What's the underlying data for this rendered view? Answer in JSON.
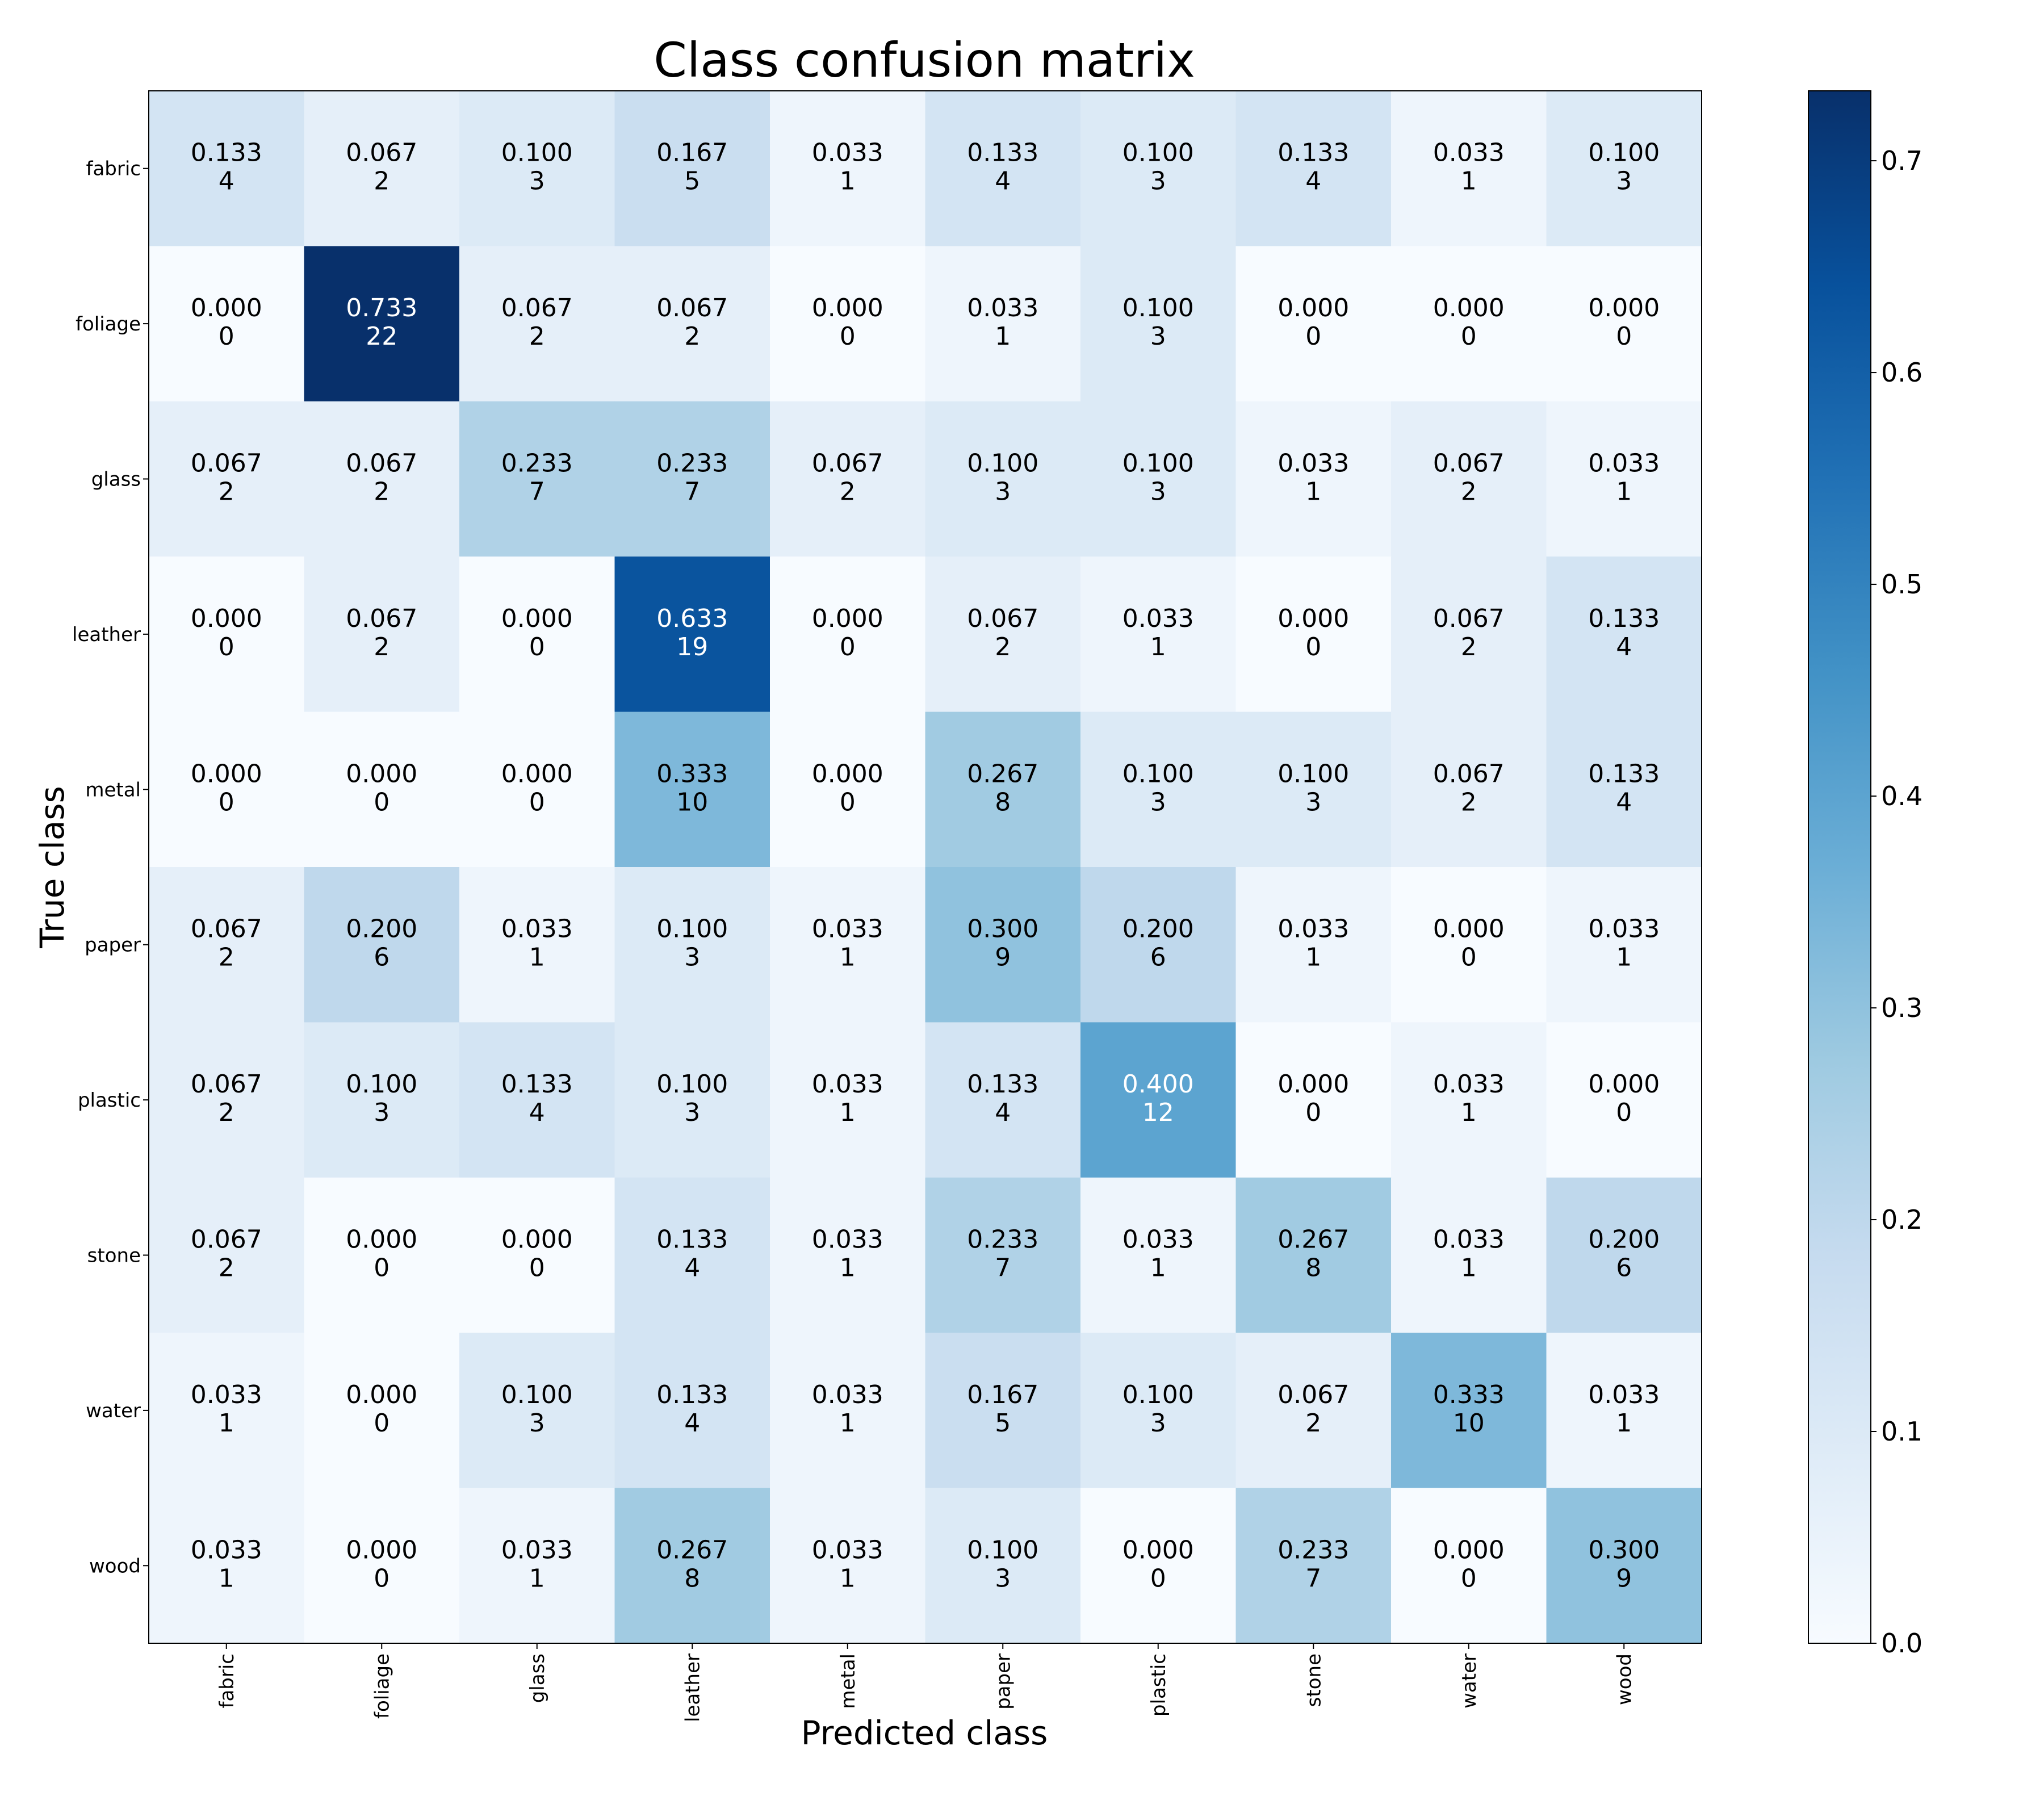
{
  "chart_data": {
    "type": "heatmap",
    "title": "Class confusion matrix",
    "xlabel": "Predicted class",
    "ylabel": "True class",
    "x_categories": [
      "fabric",
      "foliage",
      "glass",
      "leather",
      "metal",
      "paper",
      "plastic",
      "stone",
      "water",
      "wood"
    ],
    "y_categories": [
      "fabric",
      "foliage",
      "glass",
      "leather",
      "metal",
      "paper",
      "plastic",
      "stone",
      "water",
      "wood"
    ],
    "normalized": [
      [
        "0.133",
        "0.067",
        "0.100",
        "0.167",
        "0.033",
        "0.133",
        "0.100",
        "0.133",
        "0.033",
        "0.100"
      ],
      [
        "0.000",
        "0.733",
        "0.067",
        "0.067",
        "0.000",
        "0.033",
        "0.100",
        "0.000",
        "0.000",
        "0.000"
      ],
      [
        "0.067",
        "0.067",
        "0.233",
        "0.233",
        "0.067",
        "0.100",
        "0.100",
        "0.033",
        "0.067",
        "0.033"
      ],
      [
        "0.000",
        "0.067",
        "0.000",
        "0.633",
        "0.000",
        "0.067",
        "0.033",
        "0.000",
        "0.067",
        "0.133"
      ],
      [
        "0.000",
        "0.000",
        "0.000",
        "0.333",
        "0.000",
        "0.267",
        "0.100",
        "0.100",
        "0.067",
        "0.133"
      ],
      [
        "0.067",
        "0.200",
        "0.033",
        "0.100",
        "0.033",
        "0.300",
        "0.200",
        "0.033",
        "0.000",
        "0.033"
      ],
      [
        "0.067",
        "0.100",
        "0.133",
        "0.100",
        "0.033",
        "0.133",
        "0.400",
        "0.000",
        "0.033",
        "0.000"
      ],
      [
        "0.067",
        "0.000",
        "0.000",
        "0.133",
        "0.033",
        "0.233",
        "0.033",
        "0.267",
        "0.033",
        "0.200"
      ],
      [
        "0.033",
        "0.000",
        "0.100",
        "0.133",
        "0.033",
        "0.167",
        "0.100",
        "0.067",
        "0.333",
        "0.033"
      ],
      [
        "0.033",
        "0.000",
        "0.033",
        "0.267",
        "0.033",
        "0.100",
        "0.000",
        "0.233",
        "0.000",
        "0.300"
      ]
    ],
    "counts": [
      [
        "4",
        "2",
        "3",
        "5",
        "1",
        "4",
        "3",
        "4",
        "1",
        "3"
      ],
      [
        "0",
        "22",
        "2",
        "2",
        "0",
        "1",
        "3",
        "0",
        "0",
        "0"
      ],
      [
        "2",
        "2",
        "7",
        "7",
        "2",
        "3",
        "3",
        "1",
        "2",
        "1"
      ],
      [
        "0",
        "2",
        "0",
        "19",
        "0",
        "2",
        "1",
        "0",
        "2",
        "4"
      ],
      [
        "0",
        "0",
        "0",
        "10",
        "0",
        "8",
        "3",
        "3",
        "2",
        "4"
      ],
      [
        "2",
        "6",
        "1",
        "3",
        "1",
        "9",
        "6",
        "1",
        "0",
        "1"
      ],
      [
        "2",
        "3",
        "4",
        "3",
        "1",
        "4",
        "12",
        "0",
        "1",
        "0"
      ],
      [
        "2",
        "0",
        "0",
        "4",
        "1",
        "7",
        "1",
        "8",
        "1",
        "6"
      ],
      [
        "1",
        "0",
        "3",
        "4",
        "1",
        "5",
        "3",
        "2",
        "10",
        "1"
      ],
      [
        "1",
        "0",
        "1",
        "8",
        "1",
        "3",
        "0",
        "7",
        "0",
        "9"
      ]
    ],
    "colorbar": {
      "range": [
        0,
        0.733
      ],
      "ticks": [
        "0.0",
        "0.1",
        "0.2",
        "0.3",
        "0.4",
        "0.5",
        "0.6",
        "0.7"
      ],
      "colormap": "Blues"
    },
    "text_colors": {
      "dark": "#000000",
      "light": "#ffffff"
    },
    "grid": false
  }
}
